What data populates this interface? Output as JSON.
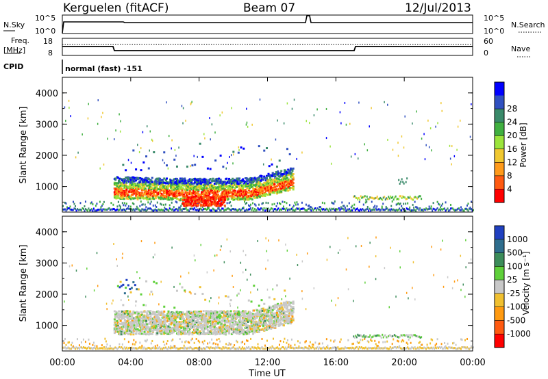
{
  "header": {
    "station": "Kerguelen (fitACF)",
    "beam": "Beam 07",
    "date": "12/Jul/2013"
  },
  "panels": {
    "nsky_label": "N.Sky",
    "nsky_ticks": [
      "10^5",
      "10^0"
    ],
    "nsearch_label": "N.Search",
    "nsearch_ticks": [
      "10^5",
      "10^0"
    ],
    "freq_label_1": "Freq.",
    "freq_label_2": "[MHz]",
    "freq_ticks": [
      "18",
      "8"
    ],
    "nave_label": "Nave",
    "nave_ticks": [
      "60",
      "0"
    ],
    "cpid_label": "CPID",
    "cpid_text": "normal (fast) -151"
  },
  "chart_data": [
    {
      "type": "heatmap",
      "name": "power",
      "xlabel": "",
      "ylabel": "Slant Range [km]",
      "x_ticks": [
        "00:00",
        "04:00",
        "08:00",
        "12:00",
        "16:00",
        "20:00",
        "00:00"
      ],
      "y_ticks": [
        "1000",
        "2000",
        "3000",
        "4000"
      ],
      "xlim_hours": [
        0,
        24
      ],
      "ylim_km": [
        180,
        4500
      ],
      "colorbar": {
        "label": "Power [dB]",
        "ticks": [
          "4",
          "8",
          "12",
          "16",
          "20",
          "24",
          "28"
        ],
        "colors": [
          "#0000ff",
          "#3050c0",
          "#3a8a6a",
          "#40b040",
          "#9be43c",
          "#f0c830",
          "#ff9a1a",
          "#ff5a10",
          "#ff0000"
        ]
      },
      "scatter_regions": [
        {
          "start_h": 3.0,
          "end_h": 13.5,
          "range_km": [
            600,
            1500
          ],
          "note": "main echo band"
        },
        {
          "start_h": 7.0,
          "end_h": 9.5,
          "range_km": [
            300,
            700
          ],
          "note": "strong red echoes"
        },
        {
          "start_h": 17.0,
          "end_h": 21.0,
          "range_km": [
            500,
            700
          ],
          "note": "weak echoes"
        }
      ]
    },
    {
      "type": "heatmap",
      "name": "velocity",
      "xlabel": "Time UT",
      "ylabel": "Slant Range [km]",
      "x_ticks": [
        "00:00",
        "04:00",
        "08:00",
        "12:00",
        "16:00",
        "20:00",
        "00:00"
      ],
      "y_ticks": [
        "1000",
        "2000",
        "3000",
        "4000"
      ],
      "xlim_hours": [
        0,
        24
      ],
      "ylim_km": [
        180,
        4500
      ],
      "colorbar": {
        "label": "Velocity [m s⁻¹]",
        "ticks": [
          "1000",
          "500",
          "100",
          "25",
          "-25",
          "-100",
          "-500",
          "-1000"
        ],
        "colors": [
          "#2040c0",
          "#2f6e8e",
          "#3c8c5a",
          "#5fd03a",
          "#c8c8c8",
          "#f0c030",
          "#ff9a10",
          "#ff5a10",
          "#ff0000"
        ]
      }
    }
  ]
}
